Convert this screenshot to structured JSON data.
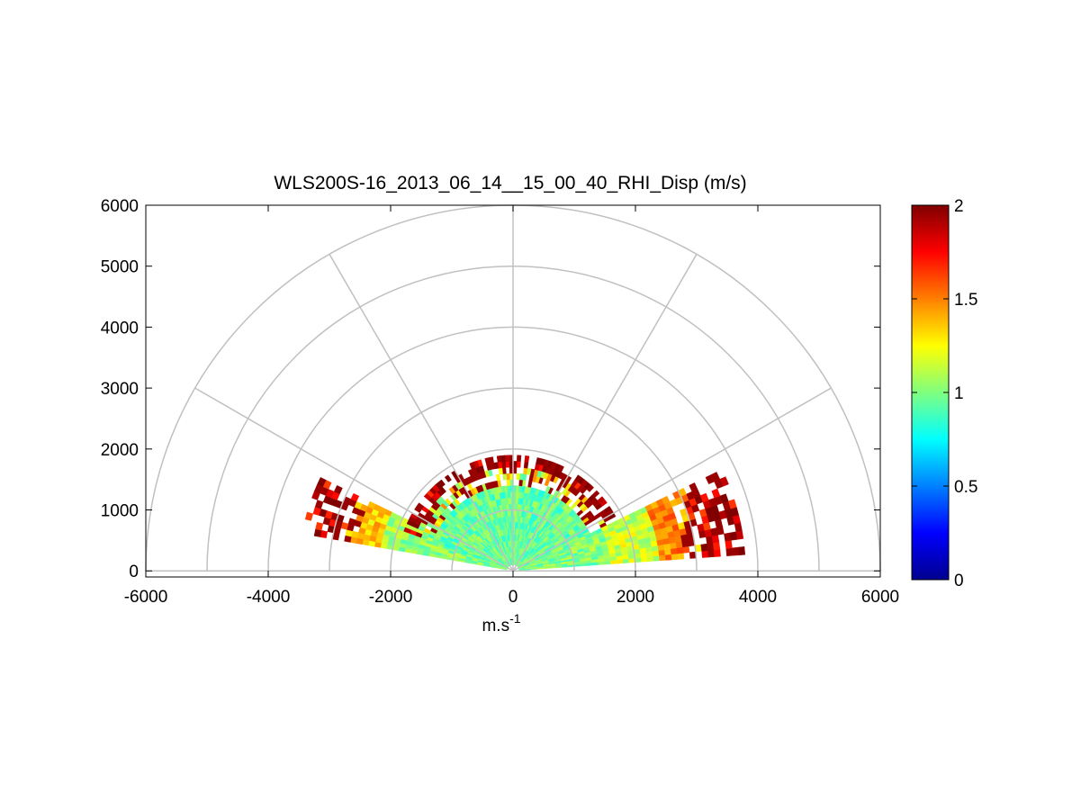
{
  "chart_data": {
    "type": "heatmap",
    "subtype": "polar-rhi-sector",
    "title": "WLS200S-16_2013_06_14__15_00_40_RHI_Disp (m/s)",
    "xlabel_base": "m.s",
    "xlabel_sup": "-1",
    "ylabel": "",
    "xlim": [
      -6000,
      6000
    ],
    "ylim": [
      -100,
      6000
    ],
    "x_ticks": [
      "-6000",
      "-4000",
      "-2000",
      "0",
      "2000",
      "4000",
      "6000"
    ],
    "x_tick_values": [
      -6000,
      -4000,
      -2000,
      0,
      2000,
      4000,
      6000
    ],
    "y_ticks": [
      "0",
      "1000",
      "2000",
      "3000",
      "4000",
      "5000",
      "6000"
    ],
    "y_tick_values": [
      0,
      1000,
      2000,
      3000,
      4000,
      5000,
      6000
    ],
    "polar_grid": {
      "ring_ranges": [
        1000,
        2000,
        3000,
        4000,
        5000,
        6000
      ],
      "spoke_angles_deg": [
        0,
        30,
        60,
        90,
        120,
        150,
        180
      ],
      "grid_color": "#c0c0c0"
    },
    "colorbar": {
      "colormap": "jet",
      "clim": [
        0,
        2
      ],
      "ticks": [
        "0",
        "0.5",
        "1",
        "1.5",
        "2"
      ],
      "tick_values": [
        0,
        0.5,
        1,
        1.5,
        2
      ]
    },
    "sectors": [
      {
        "side": "left",
        "elevation_deg": [
          10,
          26
        ],
        "approx_values": [
          {
            "range_max": 1400,
            "value": 1.0
          },
          {
            "range_max": 2100,
            "value": 1.05
          },
          {
            "range_max": 2700,
            "value": 1.35
          },
          {
            "range_max": 3500,
            "value": 1.9
          }
        ]
      },
      {
        "side": "center",
        "elevation_deg": [
          26,
          160
        ],
        "approx_values": [
          {
            "range_max": 1300,
            "value": 0.95
          },
          {
            "range_max": 1600,
            "value": 1.2
          },
          {
            "range_max": 1850,
            "value": 1.95
          }
        ]
      },
      {
        "side": "right",
        "elevation_deg": [
          4,
          26
        ],
        "approx_values": [
          {
            "range_max": 1500,
            "value": 1.0
          },
          {
            "range_max": 2300,
            "value": 1.15
          },
          {
            "range_max": 3000,
            "value": 1.5
          },
          {
            "range_max": 3800,
            "value": 1.9
          }
        ]
      }
    ]
  }
}
